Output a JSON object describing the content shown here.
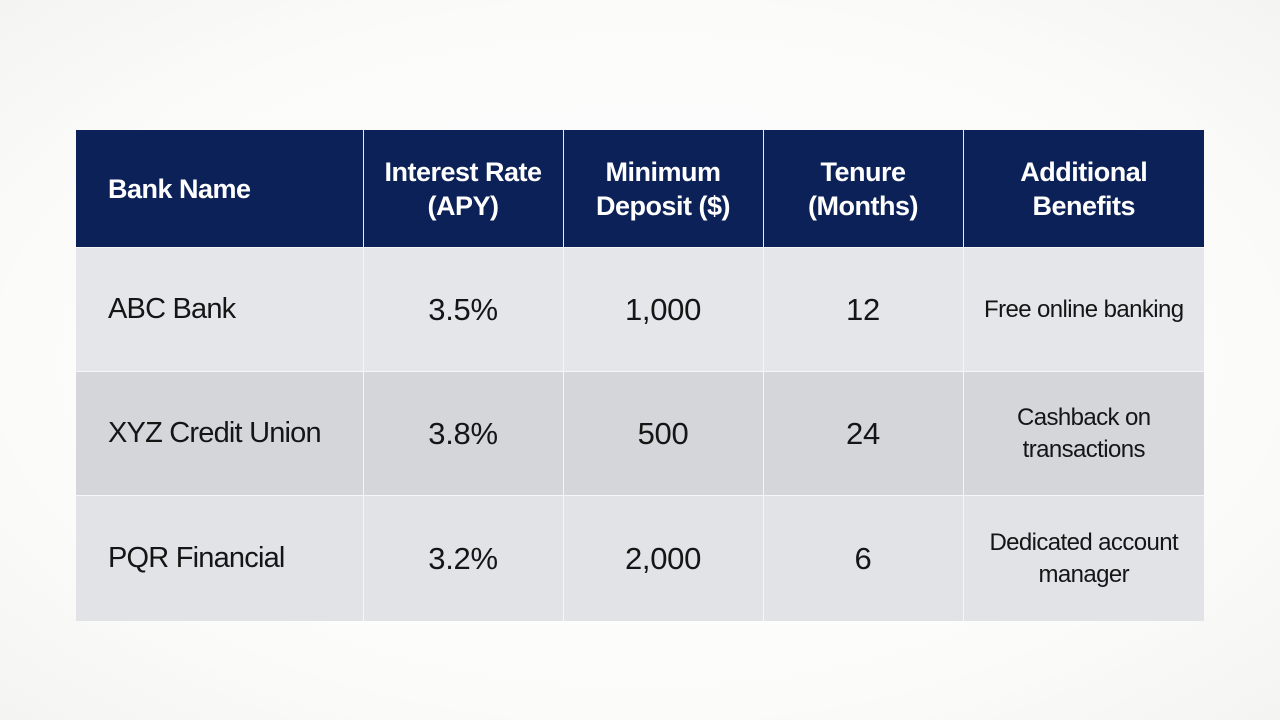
{
  "chart_data": {
    "type": "table",
    "columns": [
      "Bank Name",
      "Interest Rate (APY)",
      "Minimum Deposit ($)",
      "Tenure (Months)",
      "Additional Benefits"
    ],
    "rows": [
      [
        "ABC Bank",
        "3.5%",
        "1,000",
        "12",
        "Free online banking"
      ],
      [
        "XYZ Credit Union",
        "3.8%",
        "500",
        "24",
        "Cashback on transactions"
      ],
      [
        "PQR Financial",
        "3.2%",
        "2,000",
        "6",
        "Dedicated account manager"
      ]
    ]
  },
  "colors": {
    "header_background": "#0c2157",
    "header_text": "#ffffff",
    "row_light": "#e4e6e9",
    "row_dark": "#d4d6da",
    "body_text": "#151515"
  }
}
